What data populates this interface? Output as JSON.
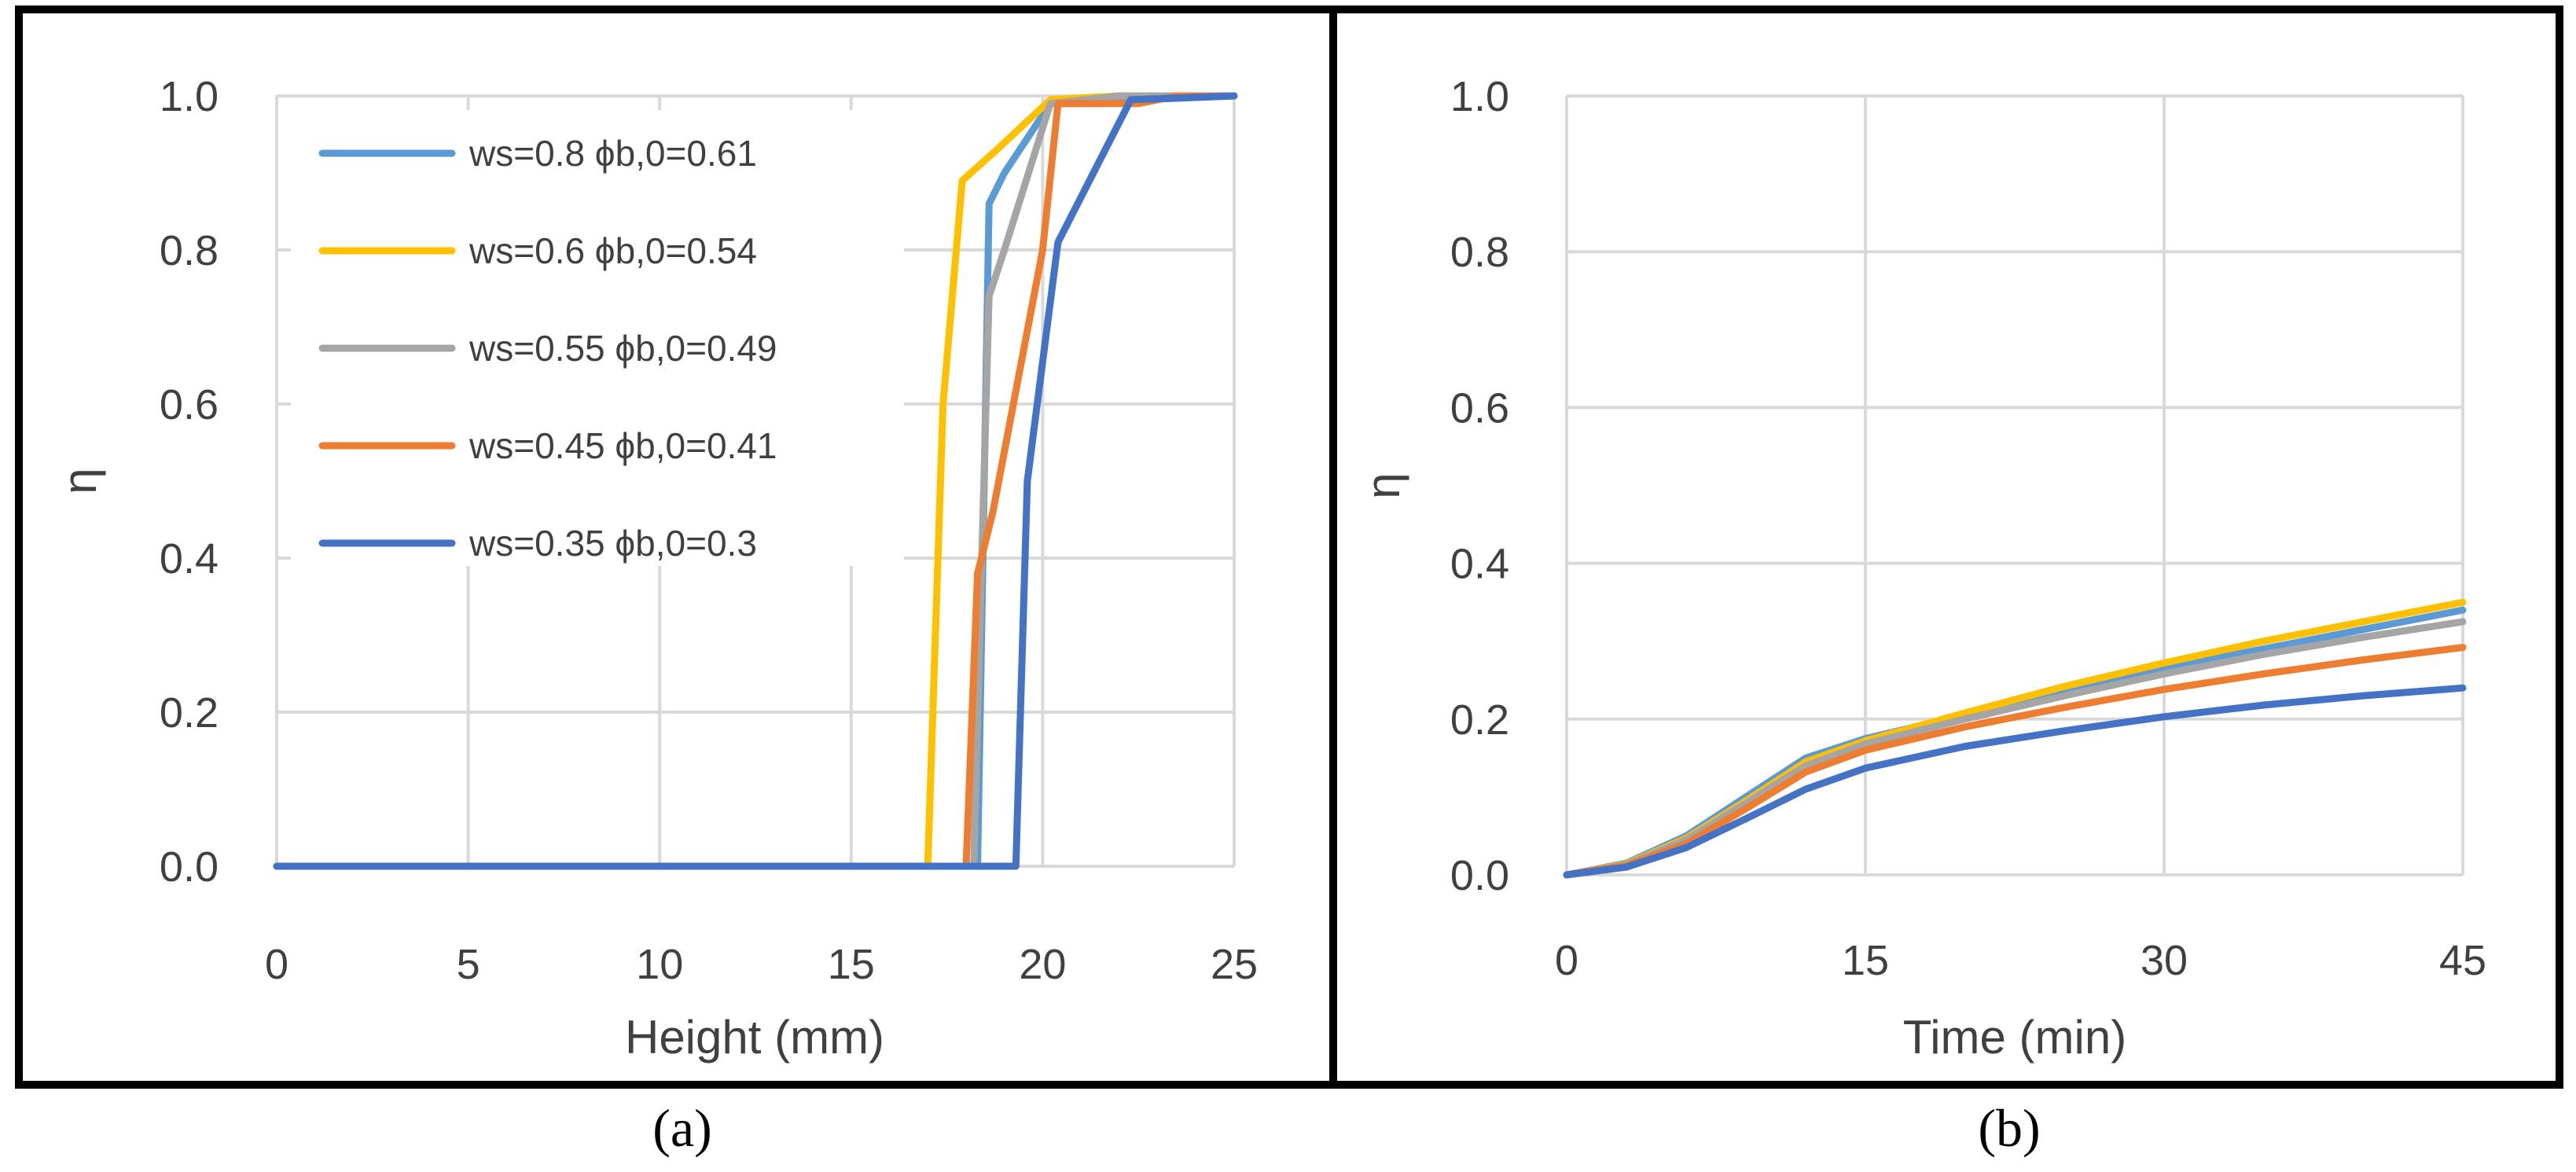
{
  "chart_data": [
    {
      "id": "a",
      "type": "line",
      "caption": "(a)",
      "xlabel": "Height (mm)",
      "ylabel": "η",
      "xlim": [
        0,
        25
      ],
      "ylim": [
        0,
        1.0
      ],
      "xticks": [
        "0",
        "5",
        "10",
        "15",
        "20",
        "25"
      ],
      "yticks": [
        "0.0",
        "0.2",
        "0.4",
        "0.6",
        "0.8",
        "1.0"
      ],
      "grid": true,
      "legend_position": "top-left",
      "series": [
        {
          "name": "ws=0.8 ϕb,0=0.61",
          "color": "#5B9BD5",
          "points": [
            [
              0,
              0
            ],
            [
              18.3,
              0
            ],
            [
              18.6,
              0.86
            ],
            [
              19.0,
              0.9
            ],
            [
              20.2,
              0.99
            ],
            [
              21.5,
              0.99
            ],
            [
              22.5,
              0.995
            ],
            [
              25,
              1.0
            ]
          ]
        },
        {
          "name": "ws=0.6 ϕb,0=0.54",
          "color": "#FFC000",
          "points": [
            [
              0,
              0
            ],
            [
              17.0,
              0
            ],
            [
              17.4,
              0.6
            ],
            [
              17.9,
              0.89
            ],
            [
              18.8,
              0.93
            ],
            [
              20.2,
              0.995
            ],
            [
              22,
              1.0
            ],
            [
              25,
              1.0
            ]
          ]
        },
        {
          "name": "ws=0.55 ϕb,0=0.49",
          "color": "#A5A5A5",
          "points": [
            [
              0,
              0
            ],
            [
              18.2,
              0
            ],
            [
              18.4,
              0.38
            ],
            [
              18.6,
              0.74
            ],
            [
              19.0,
              0.8
            ],
            [
              20.2,
              0.99
            ],
            [
              22,
              1.0
            ],
            [
              25,
              1.0
            ]
          ]
        },
        {
          "name": "ws=0.45 ϕb,0=0.41",
          "color": "#ED7D31",
          "points": [
            [
              0,
              0
            ],
            [
              18.0,
              0
            ],
            [
              18.3,
              0.38
            ],
            [
              18.7,
              0.46
            ],
            [
              20.0,
              0.8
            ],
            [
              20.4,
              0.99
            ],
            [
              22.5,
              0.99
            ],
            [
              23.5,
              1.0
            ],
            [
              25,
              1.0
            ]
          ]
        },
        {
          "name": "ws=0.35 ϕb,0=0.3",
          "color": "#4472C4",
          "points": [
            [
              0,
              0
            ],
            [
              19.3,
              0
            ],
            [
              19.6,
              0.5
            ],
            [
              20.4,
              0.81
            ],
            [
              22.3,
              0.995
            ],
            [
              25,
              1.0
            ]
          ]
        }
      ]
    },
    {
      "id": "b",
      "type": "line",
      "caption": "(b)",
      "xlabel": "Time (min)",
      "ylabel": "η",
      "xlim": [
        0,
        45
      ],
      "ylim": [
        0,
        1.0
      ],
      "xticks": [
        "0",
        "15",
        "30",
        "45"
      ],
      "yticks": [
        "0.0",
        "0.2",
        "0.4",
        "0.6",
        "0.8",
        "1.0"
      ],
      "grid": true,
      "series": [
        {
          "name": "ws=0.8 ϕb,0=0.61",
          "color": "#5B9BD5",
          "points": [
            [
              0,
              0
            ],
            [
              3,
              0.015
            ],
            [
              6,
              0.05
            ],
            [
              9,
              0.1
            ],
            [
              12,
              0.15
            ],
            [
              15,
              0.175
            ],
            [
              20,
              0.205
            ],
            [
              25,
              0.235
            ],
            [
              30,
              0.265
            ],
            [
              35,
              0.29
            ],
            [
              40,
              0.315
            ],
            [
              45,
              0.34
            ]
          ]
        },
        {
          "name": "ws=0.6 ϕb,0=0.54",
          "color": "#FFC000",
          "points": [
            [
              0,
              0
            ],
            [
              3,
              0.014
            ],
            [
              6,
              0.047
            ],
            [
              9,
              0.095
            ],
            [
              12,
              0.145
            ],
            [
              15,
              0.172
            ],
            [
              20,
              0.208
            ],
            [
              25,
              0.242
            ],
            [
              30,
              0.272
            ],
            [
              35,
              0.3
            ],
            [
              40,
              0.325
            ],
            [
              45,
              0.35
            ]
          ]
        },
        {
          "name": "ws=0.55 ϕb,0=0.49",
          "color": "#A5A5A5",
          "points": [
            [
              0,
              0
            ],
            [
              3,
              0.013
            ],
            [
              6,
              0.045
            ],
            [
              9,
              0.092
            ],
            [
              12,
              0.14
            ],
            [
              15,
              0.168
            ],
            [
              20,
              0.2
            ],
            [
              25,
              0.23
            ],
            [
              30,
              0.258
            ],
            [
              35,
              0.283
            ],
            [
              40,
              0.305
            ],
            [
              45,
              0.325
            ]
          ]
        },
        {
          "name": "ws=0.45 ϕb,0=0.41",
          "color": "#ED7D31",
          "points": [
            [
              0,
              0
            ],
            [
              3,
              0.012
            ],
            [
              6,
              0.04
            ],
            [
              9,
              0.085
            ],
            [
              12,
              0.132
            ],
            [
              15,
              0.16
            ],
            [
              20,
              0.19
            ],
            [
              25,
              0.215
            ],
            [
              30,
              0.238
            ],
            [
              35,
              0.258
            ],
            [
              40,
              0.276
            ],
            [
              45,
              0.292
            ]
          ]
        },
        {
          "name": "ws=0.35 ϕb,0=0.3",
          "color": "#4472C4",
          "points": [
            [
              0,
              0
            ],
            [
              3,
              0.01
            ],
            [
              6,
              0.035
            ],
            [
              9,
              0.072
            ],
            [
              12,
              0.11
            ],
            [
              15,
              0.137
            ],
            [
              20,
              0.165
            ],
            [
              25,
              0.185
            ],
            [
              30,
              0.203
            ],
            [
              35,
              0.218
            ],
            [
              40,
              0.23
            ],
            [
              45,
              0.24
            ]
          ]
        }
      ]
    }
  ]
}
